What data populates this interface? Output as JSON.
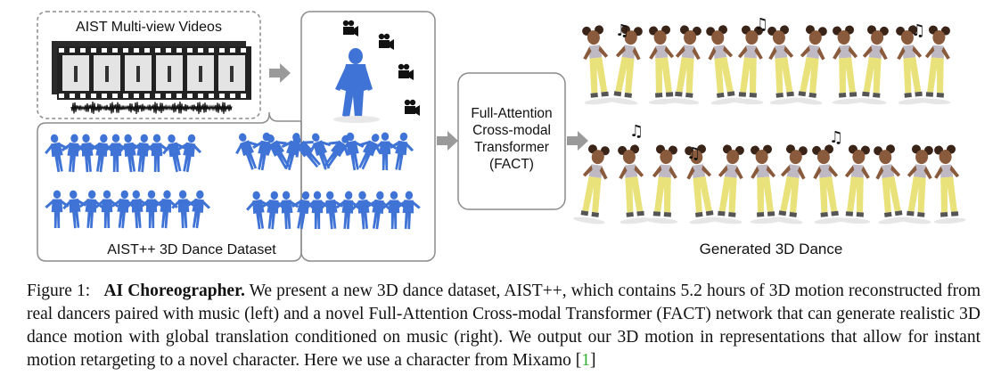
{
  "figure": {
    "video_box_label": "AIST Multi-view Videos",
    "dataset_label": "AIST++ 3D Dance Dataset",
    "fact_label_lines": [
      "Full-Attention",
      "Cross-modal",
      "Transformer",
      "(FACT)"
    ],
    "generated_label": "Generated 3D Dance",
    "colors": {
      "dancer_blue": "#3f73d6",
      "cartoon_yellow": "#e9e27a",
      "box_border": "#8c8c8c",
      "arrow_gray": "#9a9a9a",
      "citation_green": "#2bb02b"
    },
    "icons": [
      "camera-icon",
      "music-note-icon",
      "film-strip-icon",
      "waveform-icon",
      "arrow-right-icon"
    ]
  },
  "caption": {
    "prefix": "Figure 1:",
    "title": "AI Choreographer.",
    "body": "We present a new 3D dance dataset, AIST++, which contains 5.2 hours of 3D motion reconstructed from real dancers paired with music (left) and a novel Full-Attention Cross-modal Transformer (FACT) network that can generate realistic 3D dance motion with global translation conditioned on music (right). We output our 3D motion in representations that allow for instant motion retargeting to a novel character. Here we use a character from Mixamo [",
    "citation": "1",
    "suffix": "]"
  }
}
